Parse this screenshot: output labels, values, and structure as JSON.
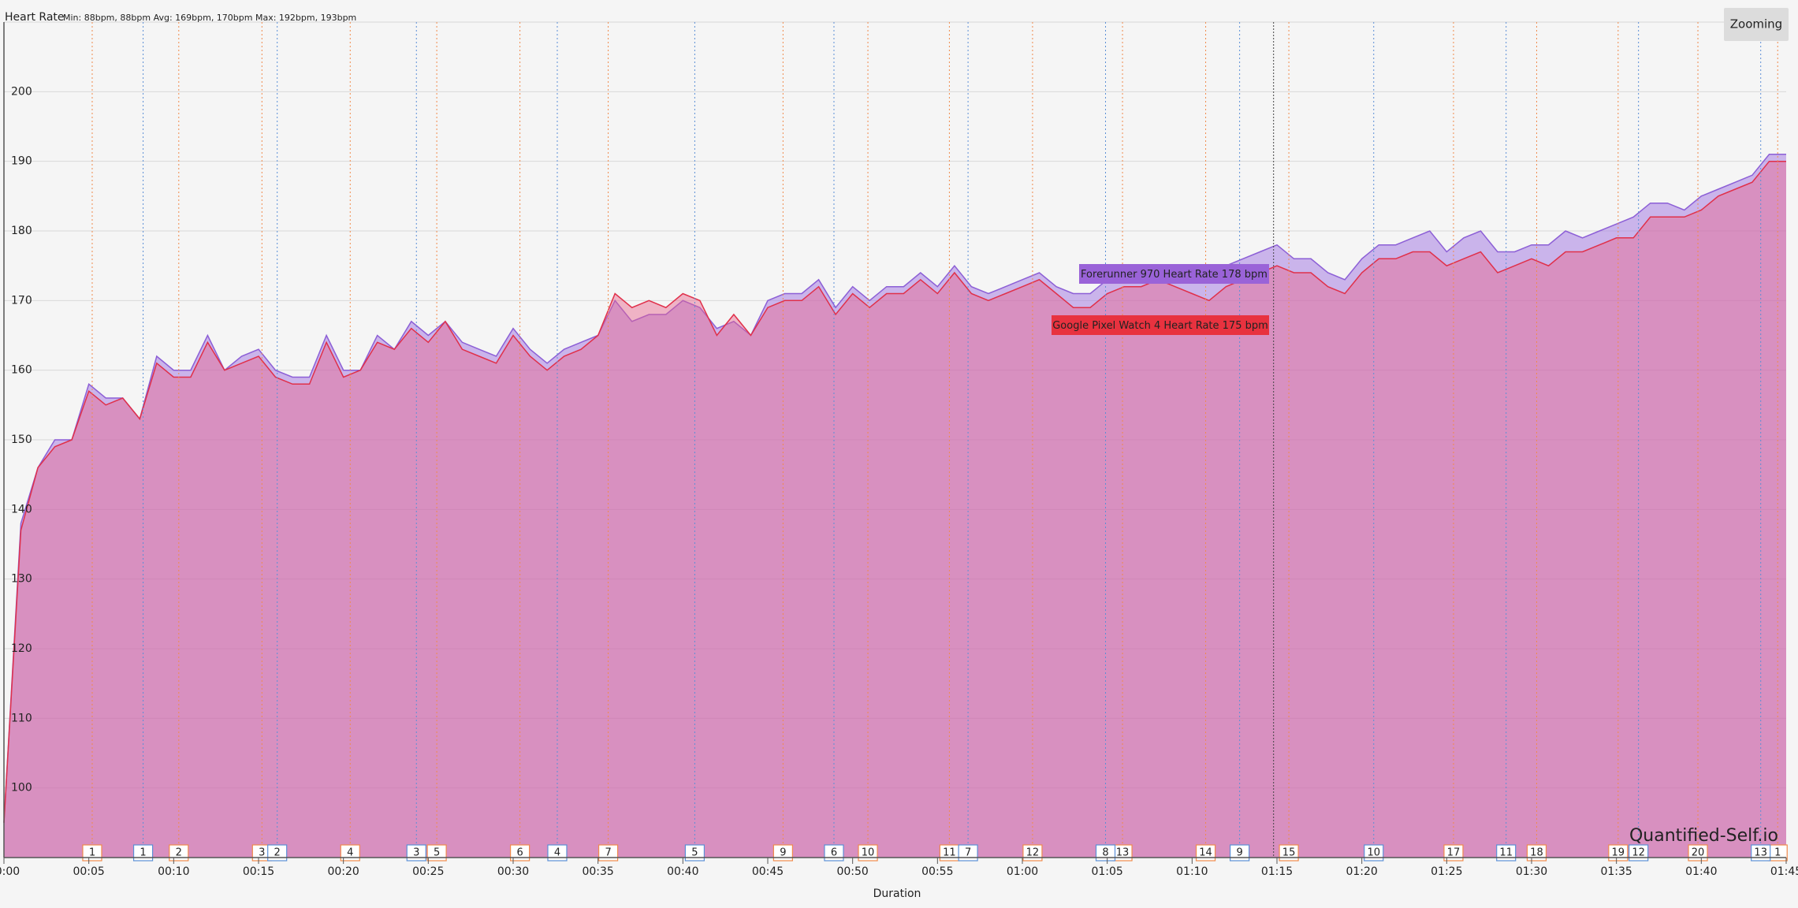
{
  "chart_data": {
    "type": "area",
    "title": "Heart Rate",
    "subtitle": "Min: 88bpm, 88bpm Avg: 169bpm, 170bpm Max: 192bpm, 193bpm",
    "x_label": "Duration",
    "button": "Zooming",
    "watermark": "Quantified-Self.io",
    "x": [
      0,
      1,
      2,
      3,
      4,
      5,
      6,
      7,
      8,
      9,
      10,
      11,
      12,
      13,
      14,
      15,
      16,
      17,
      18,
      19,
      20,
      21,
      22,
      23,
      24,
      25,
      26,
      27,
      28,
      29,
      30,
      31,
      32,
      33,
      34,
      35,
      36,
      37,
      38,
      39,
      40,
      41,
      42,
      43,
      44,
      45,
      46,
      47,
      48,
      49,
      50,
      51,
      52,
      53,
      54,
      55,
      56,
      57,
      58,
      59,
      60,
      61,
      62,
      63,
      64,
      65,
      66,
      67,
      68,
      69,
      70,
      71,
      72,
      73,
      74,
      75,
      76,
      77,
      78,
      79,
      80,
      81,
      82,
      83,
      84,
      85,
      86,
      87,
      88,
      89,
      90,
      91,
      92,
      93,
      94,
      95,
      96,
      97,
      98,
      99,
      100,
      101,
      102,
      103,
      104,
      105
    ],
    "series": [
      {
        "color": "#8c5fd6",
        "fill": "rgba(165,125,225,0.55)",
        "values": [
          95,
          138,
          146,
          150,
          150,
          158,
          156,
          156,
          153,
          162,
          160,
          160,
          165,
          160,
          162,
          163,
          160,
          159,
          159,
          165,
          160,
          160,
          165,
          163,
          167,
          165,
          167,
          164,
          163,
          162,
          166,
          163,
          161,
          163,
          164,
          165,
          170,
          167,
          168,
          168,
          170,
          169,
          166,
          167,
          165,
          170,
          171,
          171,
          173,
          169,
          172,
          170,
          172,
          172,
          174,
          172,
          175,
          172,
          171,
          172,
          173,
          174,
          172,
          171,
          171,
          173,
          174,
          175,
          175,
          175,
          174,
          173,
          175,
          176,
          177,
          178,
          176,
          176,
          174,
          173,
          176,
          178,
          178,
          179,
          180,
          177,
          179,
          180,
          177,
          177,
          178,
          178,
          180,
          179,
          180,
          181,
          182,
          184,
          184,
          183,
          185,
          186,
          187,
          188,
          191,
          191
        ]
      },
      {
        "color": "#e0304a",
        "fill": "rgba(232,100,140,0.45)",
        "values": [
          95,
          137,
          146,
          149,
          150,
          157,
          155,
          156,
          153,
          161,
          159,
          159,
          164,
          160,
          161,
          162,
          159,
          158,
          158,
          164,
          159,
          160,
          164,
          163,
          166,
          164,
          167,
          163,
          162,
          161,
          165,
          162,
          160,
          162,
          163,
          165,
          171,
          169,
          170,
          169,
          171,
          170,
          165,
          168,
          165,
          169,
          170,
          170,
          172,
          168,
          171,
          169,
          171,
          171,
          173,
          171,
          174,
          171,
          170,
          171,
          172,
          173,
          171,
          169,
          169,
          171,
          172,
          172,
          173,
          172,
          171,
          170,
          172,
          173,
          174,
          175,
          174,
          174,
          172,
          171,
          174,
          176,
          176,
          177,
          177,
          175,
          176,
          177,
          174,
          175,
          176,
          175,
          177,
          177,
          178,
          179,
          179,
          182,
          182,
          182,
          183,
          185,
          186,
          187,
          190,
          190
        ]
      }
    ],
    "xlim": [
      0,
      105
    ],
    "xticks": [
      {
        "value": 0,
        "label": "00:00"
      },
      {
        "value": 5,
        "label": "00:05"
      },
      {
        "value": 10,
        "label": "00:10"
      },
      {
        "value": 15,
        "label": "00:15"
      },
      {
        "value": 20,
        "label": "00:20"
      },
      {
        "value": 25,
        "label": "00:25"
      },
      {
        "value": 30,
        "label": "00:30"
      },
      {
        "value": 35,
        "label": "00:35"
      },
      {
        "value": 40,
        "label": "00:40"
      },
      {
        "value": 45,
        "label": "00:45"
      },
      {
        "value": 50,
        "label": "00:50"
      },
      {
        "value": 55,
        "label": "00:55"
      },
      {
        "value": 60,
        "label": "01:00"
      },
      {
        "value": 65,
        "label": "01:05"
      },
      {
        "value": 70,
        "label": "01:10"
      },
      {
        "value": 75,
        "label": "01:15"
      },
      {
        "value": 80,
        "label": "01:20"
      },
      {
        "value": 85,
        "label": "01:25"
      },
      {
        "value": 90,
        "label": "01:30"
      },
      {
        "value": 95,
        "label": "01:35"
      },
      {
        "value": 100,
        "label": "01:40"
      },
      {
        "value": 105,
        "label": "01:45"
      }
    ],
    "ylim": [
      90,
      210
    ],
    "yticks": [
      100,
      110,
      120,
      130,
      140,
      150,
      160,
      170,
      180,
      190,
      200
    ],
    "grid": true,
    "laps": [
      {
        "color": "#f08a4b",
        "x": [
          5.2,
          10.3,
          15.2,
          20.4,
          25.5,
          30.4,
          35.6,
          45.9,
          50.9,
          55.7,
          60.6,
          65.9,
          70.8,
          75.7,
          85.4,
          90.3,
          95.1,
          99.8,
          104.5
        ],
        "labels": [
          "1",
          "2",
          "3",
          "4",
          "5",
          "6",
          "7",
          "9",
          "10",
          "11",
          "12",
          "13",
          "14",
          "15",
          "17",
          "18",
          "19",
          "20",
          "1"
        ]
      },
      {
        "color": "#5b8fd6",
        "x": [
          8.2,
          16.1,
          24.3,
          32.6,
          40.7,
          48.9,
          56.8,
          64.9,
          72.8,
          80.7,
          88.5,
          96.3,
          103.5
        ],
        "labels": [
          "1",
          "2",
          "3",
          "4",
          "5",
          "6",
          "7",
          "8",
          "9",
          "10",
          "11",
          "12",
          "13"
        ]
      }
    ],
    "crosshair_x": 74.8,
    "tooltips": [
      {
        "text": "Forerunner 970 Heart Rate 178 bpm",
        "color": "#9a63d8"
      },
      {
        "text": "Google Pixel Watch 4 Heart Rate 175 bpm",
        "color": "#e8323f"
      }
    ]
  }
}
